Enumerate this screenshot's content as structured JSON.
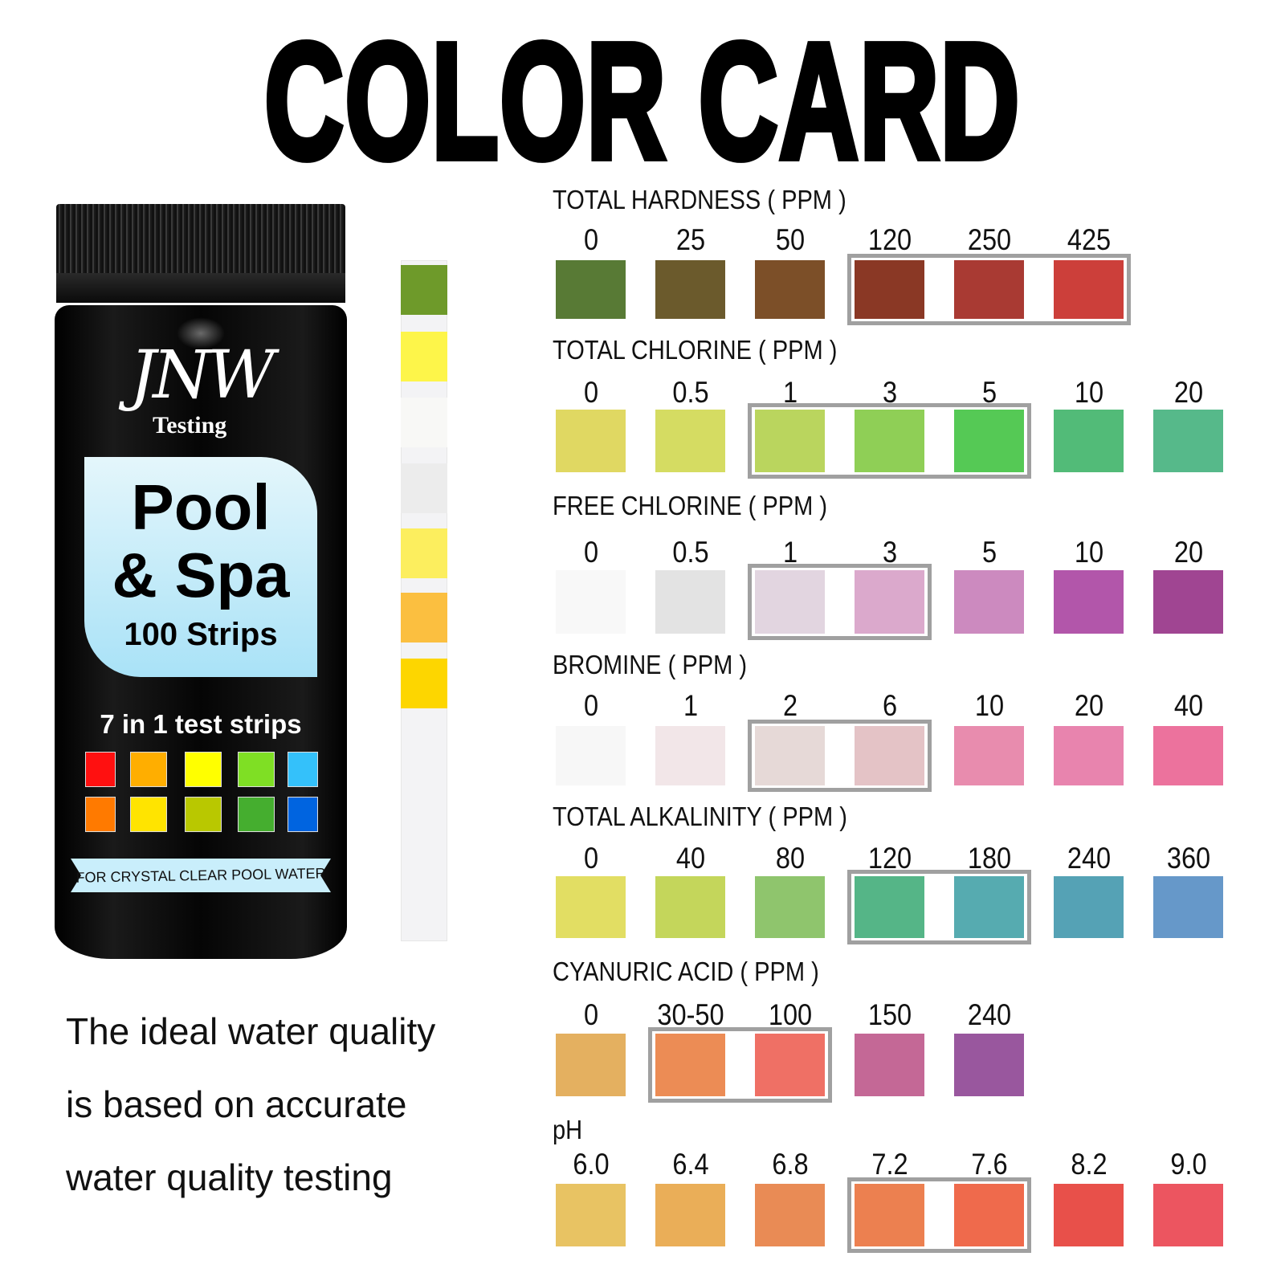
{
  "title": "COLOR CARD",
  "product": {
    "brand": "JNW",
    "brand_sub": "Testing",
    "name_line1": "Pool",
    "name_line2": "& Spa",
    "count": "100 Strips",
    "tagline": "7 in 1 test strips",
    "banner": "FOR CRYSTAL CLEAR POOL WATER",
    "mini_colors": [
      "#ff1010",
      "#ffae00",
      "#ffff00",
      "#7fdf24",
      "#34c1fa",
      "#ff7a00",
      "#ffe400",
      "#b9c800",
      "#45ae2f",
      "#0064e0"
    ]
  },
  "strip_pads": [
    "#6e9a2a",
    "#fdf54a",
    "#f8f8f6",
    "#ececec",
    "#fcee5e",
    "#fbbf40",
    "#fdd600"
  ],
  "statement": [
    "The ideal water quality",
    "is based on accurate",
    "water quality testing"
  ],
  "sections": [
    {
      "label": "TOTAL HARDNESS ( PPM )",
      "values": [
        "0",
        "25",
        "50",
        "120",
        "250",
        "425"
      ],
      "cols": [
        0,
        1,
        2,
        3,
        4,
        5
      ],
      "colors": [
        "#587a35",
        "#6b5a2c",
        "#7c4f28",
        "#8a3825",
        "#a93a33",
        "#cc3f3a"
      ],
      "ideal": [
        3,
        5
      ]
    },
    {
      "label": "TOTAL CHLORINE ( PPM )",
      "values": [
        "0",
        "0.5",
        "1",
        "3",
        "5",
        "10",
        "20"
      ],
      "cols": [
        0,
        1,
        2,
        3,
        4,
        5,
        6
      ],
      "colors": [
        "#e0d862",
        "#d5dc62",
        "#bad55e",
        "#8fcf56",
        "#55c955",
        "#52bb78",
        "#56b98a"
      ],
      "ideal": [
        2,
        4
      ]
    },
    {
      "label": "FREE CHLORINE ( PPM )",
      "values": [
        "0",
        "0.5",
        "1",
        "3",
        "5",
        "10",
        "20"
      ],
      "cols": [
        0,
        1,
        2,
        3,
        4,
        5,
        6
      ],
      "colors": [
        "#f8f8f8",
        "#e3e3e3",
        "#e2d5e0",
        "#dba9cc",
        "#cc8abf",
        "#b256aa",
        "#a04592"
      ],
      "ideal": [
        2,
        3
      ]
    },
    {
      "label": "BROMINE ( PPM )",
      "values": [
        "0",
        "1",
        "2",
        "6",
        "10",
        "20",
        "40"
      ],
      "cols": [
        0,
        1,
        2,
        3,
        4,
        5,
        6
      ],
      "colors": [
        "#f7f7f7",
        "#f2e6e8",
        "#e6d9d7",
        "#e4c3c6",
        "#e88cae",
        "#e884ae",
        "#ec729d"
      ],
      "ideal": [
        2,
        3
      ]
    },
    {
      "label": "TOTAL ALKALINITY ( PPM )",
      "values": [
        "0",
        "40",
        "80",
        "120",
        "180",
        "240",
        "360"
      ],
      "cols": [
        0,
        1,
        2,
        3,
        4,
        5,
        6
      ],
      "colors": [
        "#e2de63",
        "#c4d65b",
        "#8fc56d",
        "#55b587",
        "#56abb0",
        "#55a2b5",
        "#6698c9"
      ],
      "ideal": [
        3,
        4
      ]
    },
    {
      "label": "CYANURIC ACID ( PPM )",
      "values": [
        "0",
        "30-50",
        "100",
        "150",
        "240"
      ],
      "cols": [
        0,
        1,
        2,
        3,
        4
      ],
      "colors": [
        "#e4b060",
        "#ec8c55",
        "#ef7065",
        "#c46896",
        "#99579e"
      ],
      "ideal": [
        1,
        2
      ]
    },
    {
      "label": "pH",
      "values": [
        "6.0",
        "6.4",
        "6.8",
        "7.2",
        "7.6",
        "8.2",
        "9.0"
      ],
      "cols": [
        0,
        1,
        2,
        3,
        4,
        5,
        6
      ],
      "colors": [
        "#e8c363",
        "#eaae58",
        "#e98b55",
        "#ec8050",
        "#ef6a4c",
        "#e8504a",
        "#ec5560"
      ],
      "ideal": [
        3,
        4
      ]
    }
  ],
  "ideal_border_color": "#a0a0a0"
}
